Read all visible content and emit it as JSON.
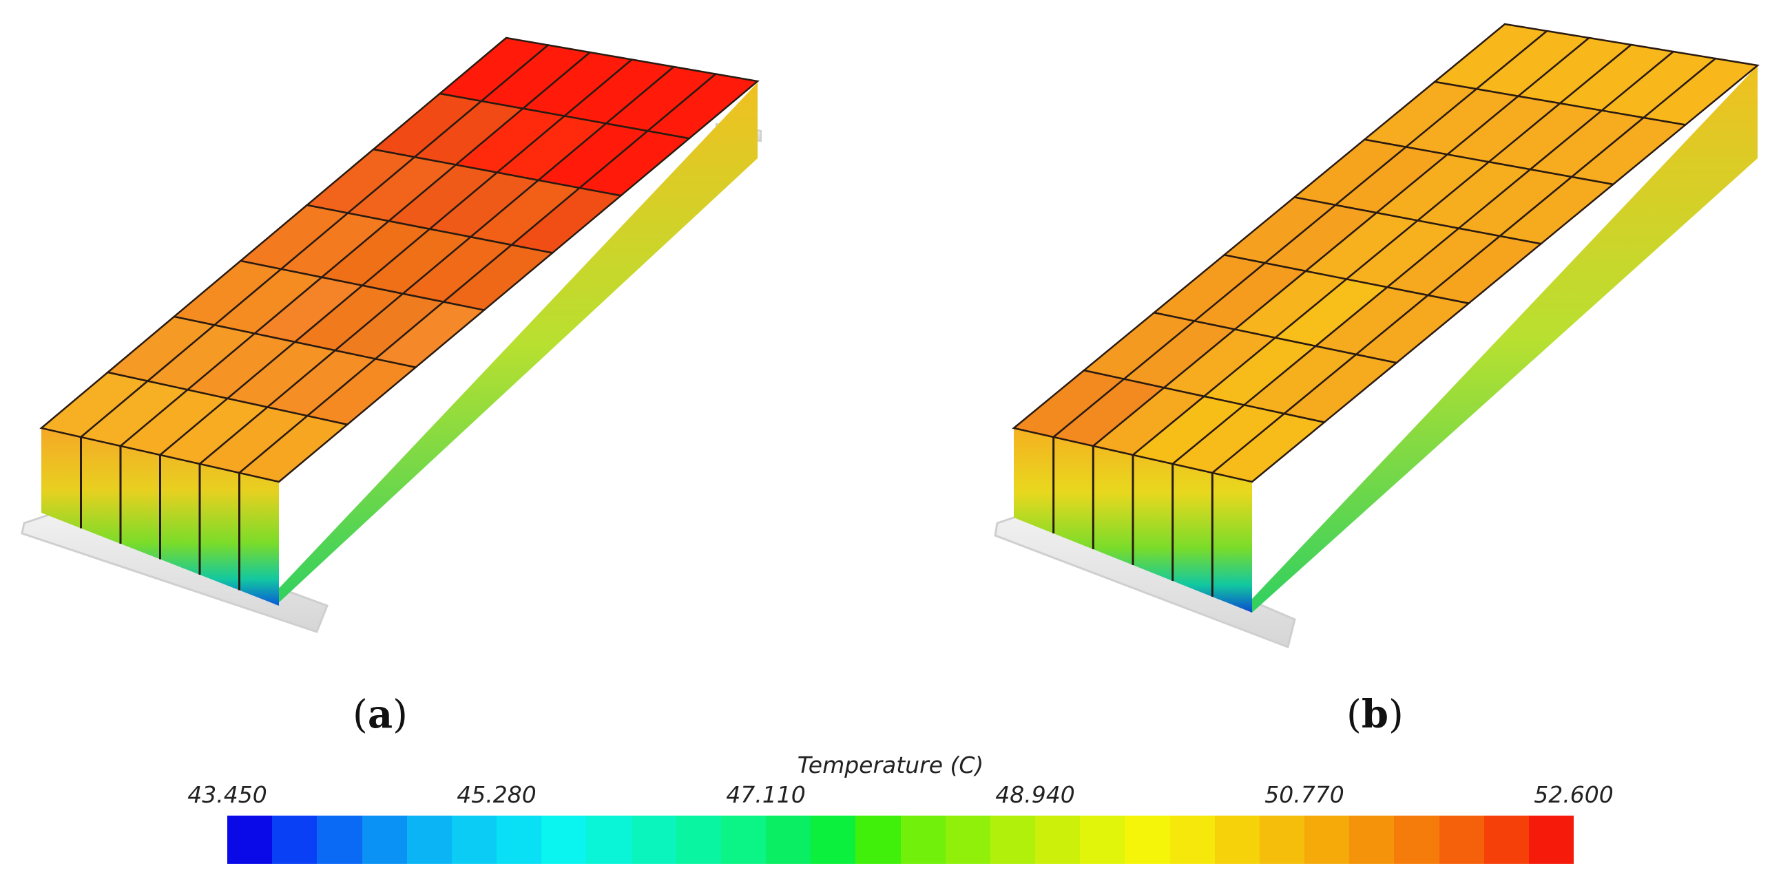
{
  "panels": [
    {
      "label_open": "(",
      "label_letter": "a",
      "label_close": ")",
      "rows": [
        [
          "#FF1A0A",
          "#FF1A0A",
          "#FF1A0A",
          "#FF1A0A",
          "#FF1A0A",
          "#FF1A0A"
        ],
        [
          "#F24A14",
          "#F24A14",
          "#FF2A0C",
          "#FF2A0C",
          "#FF1A0A",
          "#FF1A0A"
        ],
        [
          "#F2641C",
          "#F2641C",
          "#F05A18",
          "#F05A18",
          "#F26018",
          "#F04E14"
        ],
        [
          "#F47A20",
          "#F47A20",
          "#F07018",
          "#F07018",
          "#F06A18",
          "#EE6818"
        ],
        [
          "#F48C22",
          "#F48C22",
          "#F58428",
          "#F07A1C",
          "#F07C20",
          "#F58828"
        ],
        [
          "#F59A24",
          "#F59A24",
          "#F59424",
          "#F59424",
          "#F58E24",
          "#F58A22"
        ],
        [
          "#F7B024",
          "#F7B024",
          "#F7AC22",
          "#F7AC22",
          "#F7A622",
          "#F7A622"
        ]
      ]
    },
    {
      "label_open": "(",
      "label_letter": "b",
      "label_close": ")",
      "rows": [
        [
          "#F8B81C",
          "#F8B81C",
          "#F8B81C",
          "#F8B81C",
          "#F8B81C",
          "#F8B81C"
        ],
        [
          "#F6AC1E",
          "#F6AC1E",
          "#F6AC1E",
          "#F6AC1E",
          "#F6AC1E",
          "#F6AC1E"
        ],
        [
          "#F6A41E",
          "#F6A41E",
          "#F6AE1E",
          "#F6AE1E",
          "#F6AA1E",
          "#F6AA1E"
        ],
        [
          "#F5A01E",
          "#F5A01E",
          "#F7B01E",
          "#F7B01E",
          "#F6A81E",
          "#F6A41E"
        ],
        [
          "#F59C1E",
          "#F59C1E",
          "#F7B41C",
          "#F8BE1A",
          "#F6AA1E",
          "#F6A81E"
        ],
        [
          "#F49A20",
          "#F49A20",
          "#F6AC1E",
          "#F8BC1A",
          "#F6B01E",
          "#F6AA1E"
        ],
        [
          "#F28A20",
          "#F28A20",
          "#F6A81E",
          "#F8BE18",
          "#F8BC1A",
          "#F8BC1A"
        ]
      ]
    }
  ],
  "colorbar": {
    "title": "Temperature (C)",
    "ticks": [
      "43.450",
      "45.280",
      "47.110",
      "48.940",
      "50.770",
      "52.600"
    ],
    "colors": [
      "#0A0AE8",
      "#0A40F5",
      "#0A6AF5",
      "#0A92F5",
      "#0AB4F5",
      "#0ACCF5",
      "#0AE0F5",
      "#0AF5F0",
      "#0AF5D8",
      "#0AF5BE",
      "#0AF5A2",
      "#0AF585",
      "#0AEE64",
      "#0AF03C",
      "#40F00A",
      "#70F00A",
      "#90F00A",
      "#B0F00A",
      "#CCF00A",
      "#E0F50A",
      "#F5F50A",
      "#F5E80A",
      "#F5D20A",
      "#F5BE0A",
      "#F5AA0A",
      "#F5940A",
      "#F57C0A",
      "#F5600A",
      "#F5400A",
      "#F51A0A"
    ]
  }
}
